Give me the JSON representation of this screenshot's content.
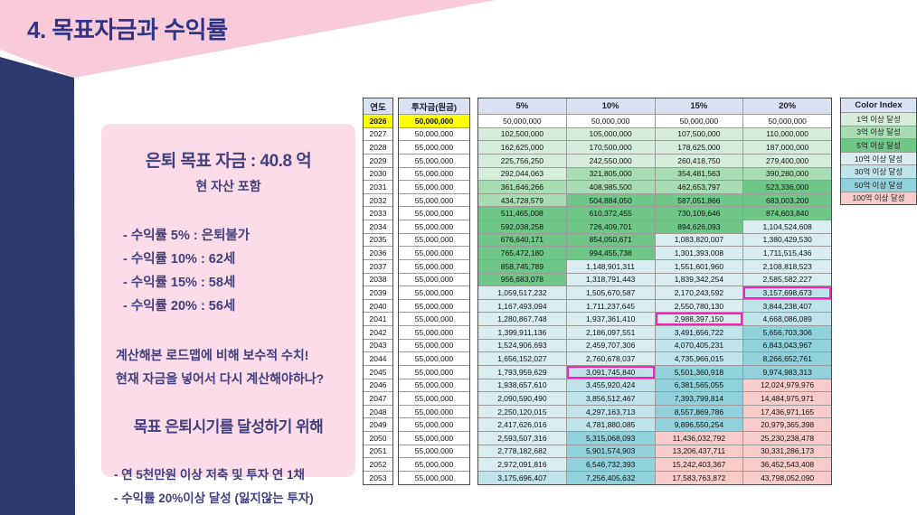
{
  "slide": {
    "title": "4. 목표자금과 수익률"
  },
  "info_panel": {
    "title": "은퇴 목표 자금 : 40.8 억",
    "subtitle": "현 자산 포함",
    "rate_bullets": [
      "- 수익률 5% :  은퇴불가",
      "- 수익률 10% : 62세",
      "- 수익률 15% : 58세",
      "- 수익률 20% : 56세"
    ],
    "note_lines": [
      "계산해본 로드맵에 비해 보수적 수치!",
      "현재 자금을 넣어서 다시 계산해야하나?"
    ],
    "goal_title": "목표 은퇴시기를 달성하기 위해",
    "goal_bullets": [
      "- 연 5천만원 이상 저축 및 투자 연 1채",
      "- 수익률 20%이상 달성 (잃지않는 투자)"
    ]
  },
  "table": {
    "year_header": "연도",
    "principal_header": "투자금(원금)",
    "rate_headers": [
      "5%",
      "10%",
      "15%",
      "20%"
    ],
    "rows": [
      {
        "year": "2026",
        "principal": "50,000,000",
        "values": [
          "50,000,000",
          "50,000,000",
          "50,000,000",
          "50,000,000"
        ]
      },
      {
        "year": "2027",
        "principal": "50,000,000",
        "values": [
          "102,500,000",
          "105,000,000",
          "107,500,000",
          "110,000,000"
        ]
      },
      {
        "year": "2028",
        "principal": "55,000,000",
        "values": [
          "162,625,000",
          "170,500,000",
          "178,625,000",
          "187,000,000"
        ]
      },
      {
        "year": "2029",
        "principal": "55,000,000",
        "values": [
          "225,756,250",
          "242,550,000",
          "260,418,750",
          "279,400,000"
        ]
      },
      {
        "year": "2030",
        "principal": "55,000,000",
        "values": [
          "292,044,063",
          "321,805,000",
          "354,481,563",
          "390,280,000"
        ]
      },
      {
        "year": "2031",
        "principal": "55,000,000",
        "values": [
          "361,646,266",
          "408,985,500",
          "462,653,797",
          "523,336,000"
        ]
      },
      {
        "year": "2032",
        "principal": "55,000,000",
        "values": [
          "434,728,579",
          "504,884,050",
          "587,051,866",
          "683,003,200"
        ]
      },
      {
        "year": "2033",
        "principal": "55,000,000",
        "values": [
          "511,465,008",
          "610,372,455",
          "730,109,646",
          "874,603,840"
        ]
      },
      {
        "year": "2034",
        "principal": "55,000,000",
        "values": [
          "592,038,258",
          "726,409,701",
          "894,626,093",
          "1,104,524,608"
        ]
      },
      {
        "year": "2035",
        "principal": "55,000,000",
        "values": [
          "676,640,171",
          "854,050,671",
          "1,083,820,007",
          "1,380,429,530"
        ]
      },
      {
        "year": "2036",
        "principal": "55,000,000",
        "values": [
          "765,472,180",
          "994,455,738",
          "1,301,393,008",
          "1,711,515,436"
        ]
      },
      {
        "year": "2037",
        "principal": "55,000,000",
        "values": [
          "858,745,789",
          "1,148,901,311",
          "1,551,601,960",
          "2,108,818,523"
        ]
      },
      {
        "year": "2038",
        "principal": "55,000,000",
        "values": [
          "956,683,078",
          "1,318,791,443",
          "1,839,342,254",
          "2,585,582,227"
        ]
      },
      {
        "year": "2039",
        "principal": "55,000,000",
        "values": [
          "1,059,517,232",
          "1,505,670,587",
          "2,170,243,592",
          "3,157,698,673"
        ]
      },
      {
        "year": "2040",
        "principal": "55,000,000",
        "values": [
          "1,167,493,094",
          "1,711,237,645",
          "2,550,780,130",
          "3,844,238,407"
        ]
      },
      {
        "year": "2041",
        "principal": "55,000,000",
        "values": [
          "1,280,867,748",
          "1,937,361,410",
          "2,988,397,150",
          "4,668,086,089"
        ]
      },
      {
        "year": "2042",
        "principal": "55,000,000",
        "values": [
          "1,399,911,136",
          "2,186,097,551",
          "3,491,656,722",
          "5,656,703,306"
        ]
      },
      {
        "year": "2043",
        "principal": "55,000,000",
        "values": [
          "1,524,906,693",
          "2,459,707,306",
          "4,070,405,231",
          "6,843,043,967"
        ]
      },
      {
        "year": "2044",
        "principal": "55,000,000",
        "values": [
          "1,656,152,027",
          "2,760,678,037",
          "4,735,966,015",
          "8,266,652,761"
        ]
      },
      {
        "year": "2045",
        "principal": "55,000,000",
        "values": [
          "1,793,959,629",
          "3,091,745,840",
          "5,501,360,918",
          "9,974,983,313"
        ]
      },
      {
        "year": "2046",
        "principal": "55,000,000",
        "values": [
          "1,938,657,610",
          "3,455,920,424",
          "6,381,565,055",
          "12,024,979,976"
        ]
      },
      {
        "year": "2047",
        "principal": "55,000,000",
        "values": [
          "2,090,590,490",
          "3,856,512,467",
          "7,393,799,814",
          "14,484,975,971"
        ]
      },
      {
        "year": "2048",
        "principal": "55,000,000",
        "values": [
          "2,250,120,015",
          "4,297,163,713",
          "8,557,869,786",
          "17,436,971,165"
        ]
      },
      {
        "year": "2049",
        "principal": "55,000,000",
        "values": [
          "2,417,626,016",
          "4,781,880,085",
          "9,896,550,254",
          "20,979,365,398"
        ]
      },
      {
        "year": "2050",
        "principal": "55,000,000",
        "values": [
          "2,593,507,316",
          "5,315,068,093",
          "11,436,032,792",
          "25,230,238,478"
        ]
      },
      {
        "year": "2051",
        "principal": "55,000,000",
        "values": [
          "2,778,182,682",
          "5,901,574,903",
          "13,206,437,711",
          "30,331,286,173"
        ]
      },
      {
        "year": "2052",
        "principal": "55,000,000",
        "values": [
          "2,972,091,816",
          "6,546,732,393",
          "15,242,403,367",
          "36,452,543,408"
        ]
      },
      {
        "year": "2053",
        "principal": "55,000,000",
        "values": [
          "3,175,696,407",
          "7,256,405,632",
          "17,583,763,872",
          "43,798,052,090"
        ]
      }
    ]
  },
  "color_index": {
    "title": "Color Index",
    "items": [
      {
        "label": "1억 이상 달성",
        "color": "#D7EDDC",
        "min": 100000000
      },
      {
        "label": "3억 이상 달성",
        "color": "#A8DCB3",
        "min": 300000000
      },
      {
        "label": "5억 이상 달성",
        "color": "#6FC787",
        "min": 500000000
      },
      {
        "label": "10억 이상 달성",
        "color": "#DAEDF1",
        "min": 1000000000
      },
      {
        "label": "30억 이상 달성",
        "color": "#BFE4EA",
        "min": 3000000000
      },
      {
        "label": "50억 이상 달성",
        "color": "#90D1DB",
        "min": 5000000000
      },
      {
        "label": "100억 이상 달성",
        "color": "#F8CCCB",
        "min": 10000000000
      }
    ]
  },
  "highlights": {
    "yellow_year": "2026",
    "yellow_color": "#FFFF00",
    "outlined_cells": [
      {
        "year": "2039",
        "rate": "20%"
      },
      {
        "year": "2041",
        "rate": "15%"
      },
      {
        "year": "2045",
        "rate": "10%"
      }
    ],
    "outline_color": "#FF1DC3"
  },
  "theme": {
    "header_pink": "#F9CADA",
    "panel_pink": "#FBDCE8",
    "navy": "#2E3A6E",
    "title_color": "#2F3487",
    "panel_text": "#413F7D",
    "table_header_bg": "#D9E1F2"
  }
}
